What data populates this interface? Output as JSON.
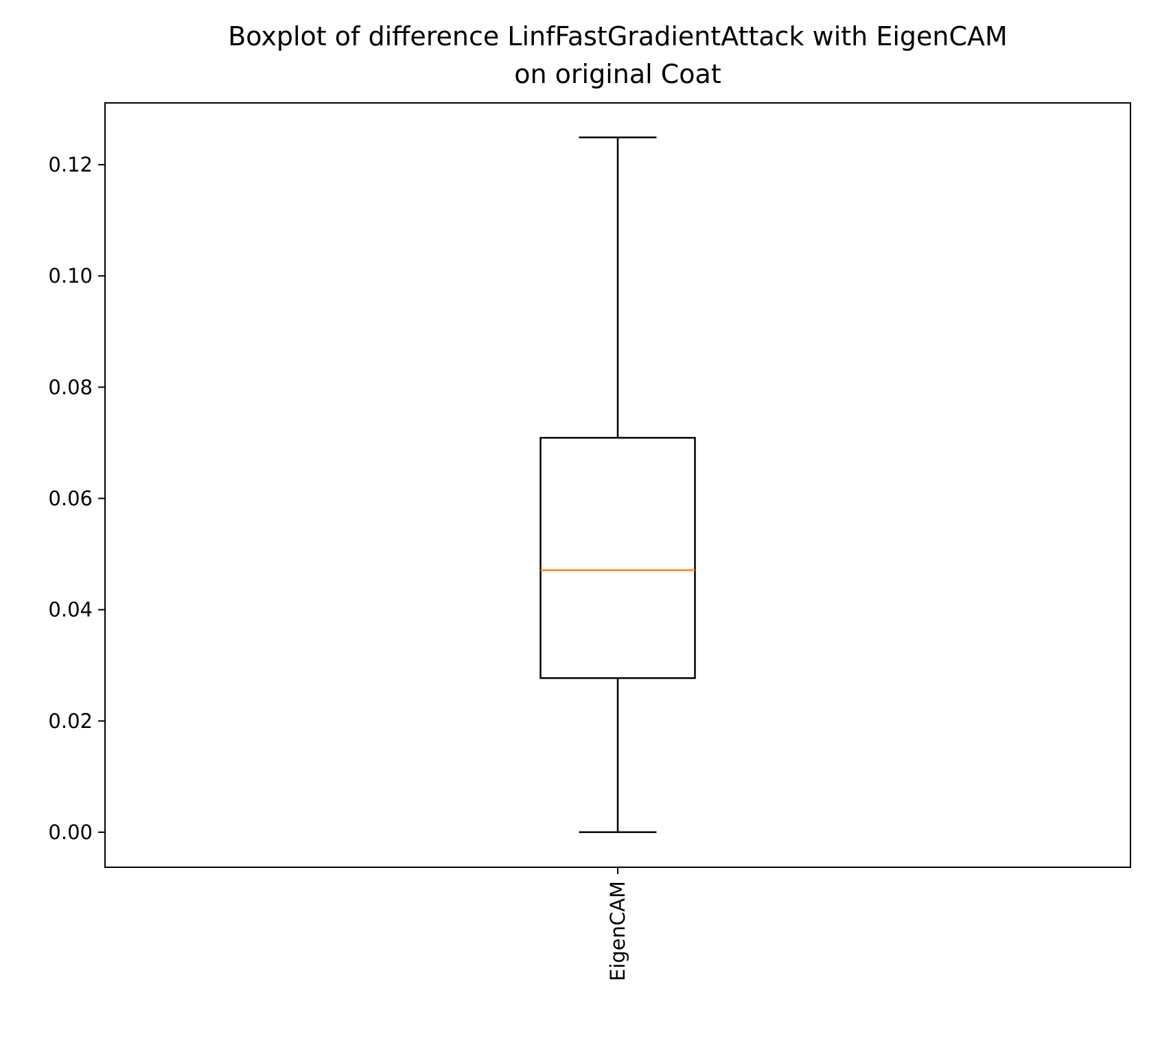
{
  "chart_data": {
    "type": "boxplot",
    "title_lines": [
      "Boxplot of difference LinfFastGradientAttack with EigenCAM",
      "on original Coat"
    ],
    "xlabel": "",
    "ylabel": "",
    "categories": [
      "EigenCAM"
    ],
    "boxes": [
      {
        "label": "EigenCAM",
        "whisker_low": 0.0,
        "q1": 0.0277,
        "median": 0.0471,
        "q3": 0.0709,
        "whisker_high": 0.1249
      }
    ],
    "ylim": [
      -0.0063,
      0.1311
    ],
    "yticks": [
      0.0,
      0.02,
      0.04,
      0.06,
      0.08,
      0.1,
      0.12
    ],
    "ytick_labels": [
      "0.00",
      "0.02",
      "0.04",
      "0.06",
      "0.08",
      "0.10",
      "0.12"
    ],
    "grid": false,
    "colors": {
      "box": "#000000",
      "median": "#ff7f0e",
      "whisker": "#000000"
    }
  }
}
